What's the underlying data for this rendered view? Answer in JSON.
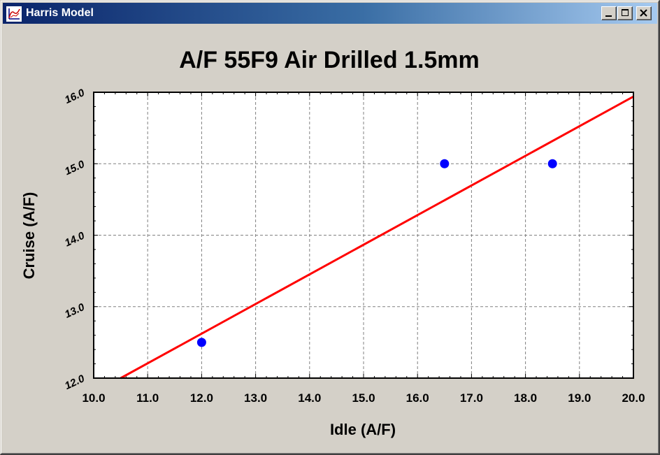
{
  "window": {
    "title": "Harris Model",
    "app_icon": "harris-chart-icon",
    "controls": {
      "minimize_icon": "minimize-icon",
      "maximize_icon": "maximize-icon",
      "close_icon": "close-icon"
    }
  },
  "colors": {
    "window_bg": "#d4d0c8",
    "plot_bg": "#ffffff",
    "line": "#ff0000",
    "points": "#0000ff",
    "grid": "#808080",
    "text": "#000000"
  },
  "chart_data": {
    "type": "scatter",
    "title": "A/F 55F9 Air Drilled 1.5mm",
    "xlabel": "Idle (A/F)",
    "ylabel": "Cruise (A/F)",
    "xlim": [
      10.0,
      20.0
    ],
    "ylim": [
      12.0,
      16.0
    ],
    "x_ticks": [
      10.0,
      11.0,
      12.0,
      13.0,
      14.0,
      15.0,
      16.0,
      17.0,
      18.0,
      19.0,
      20.0
    ],
    "x_tick_labels": [
      "10.0",
      "11.0",
      "12.0",
      "13.0",
      "14.0",
      "15.0",
      "16.0",
      "17.0",
      "18.0",
      "19.0",
      "20.0"
    ],
    "y_ticks": [
      12.0,
      13.0,
      14.0,
      15.0,
      16.0
    ],
    "y_tick_labels": [
      "12.0",
      "13.0",
      "14.0",
      "15.0",
      "16.0"
    ],
    "grid": true,
    "series": [
      {
        "type": "scatter",
        "x": [
          12.0,
          16.5,
          18.5
        ],
        "y": [
          12.5,
          15.0,
          15.0
        ]
      },
      {
        "type": "line",
        "x": [
          10.5,
          20.0
        ],
        "y": [
          12.0,
          15.94
        ]
      }
    ]
  }
}
